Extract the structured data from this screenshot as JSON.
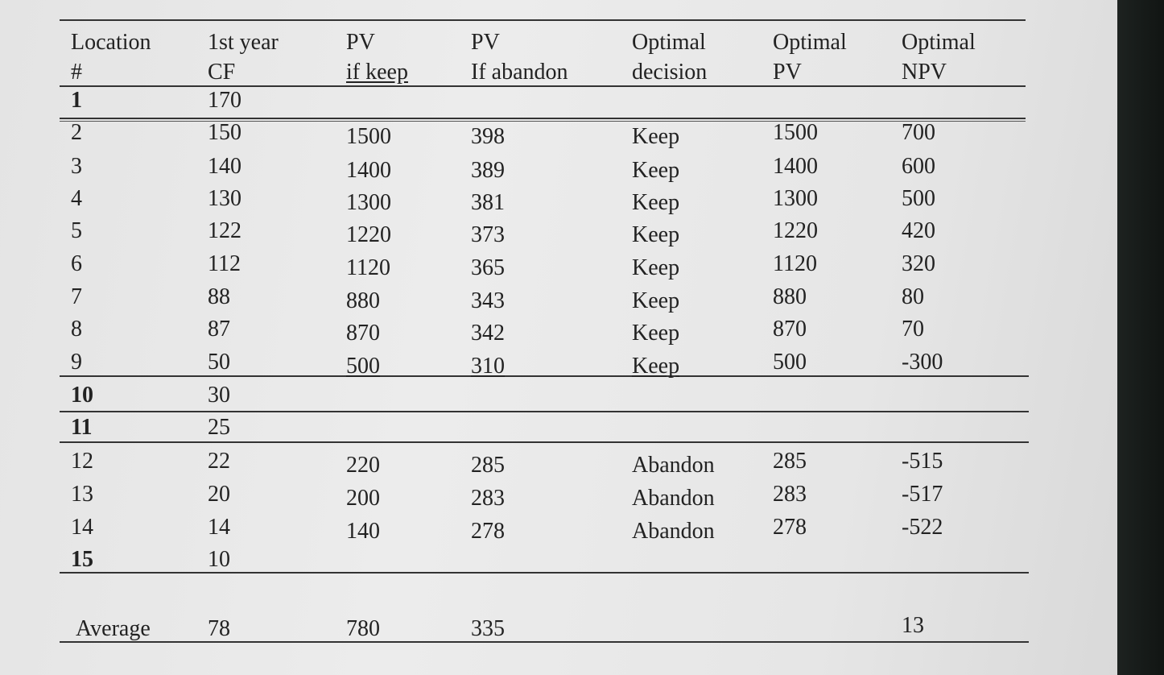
{
  "table": {
    "headers": [
      {
        "line1": "Location",
        "line2": "#"
      },
      {
        "line1": "1st year",
        "line2": "CF"
      },
      {
        "line1": "PV",
        "line2": "if keep"
      },
      {
        "line1": "PV",
        "line2": "If abandon"
      },
      {
        "line1": "Optimal",
        "line2": "decision"
      },
      {
        "line1": "Optimal",
        "line2": "PV"
      },
      {
        "line1": "Optimal",
        "line2": "NPV"
      }
    ],
    "rows": [
      {
        "loc": "1",
        "cf": "170",
        "pv_keep": "",
        "pv_abandon": "",
        "decision": "",
        "opt_pv": "",
        "opt_npv": ""
      },
      {
        "loc": "2",
        "cf": "150",
        "pv_keep": "1500",
        "pv_abandon": "398",
        "decision": "Keep",
        "opt_pv": "1500",
        "opt_npv": "700"
      },
      {
        "loc": "3",
        "cf": "140",
        "pv_keep": "1400",
        "pv_abandon": "389",
        "decision": "Keep",
        "opt_pv": "1400",
        "opt_npv": "600"
      },
      {
        "loc": "4",
        "cf": "130",
        "pv_keep": "1300",
        "pv_abandon": "381",
        "decision": "Keep",
        "opt_pv": "1300",
        "opt_npv": "500"
      },
      {
        "loc": "5",
        "cf": "122",
        "pv_keep": "1220",
        "pv_abandon": "373",
        "decision": "Keep",
        "opt_pv": "1220",
        "opt_npv": "420"
      },
      {
        "loc": "6",
        "cf": "112",
        "pv_keep": "1120",
        "pv_abandon": "365",
        "decision": "Keep",
        "opt_pv": "1120",
        "opt_npv": "320"
      },
      {
        "loc": "7",
        "cf": "88",
        "pv_keep": "880",
        "pv_abandon": "343",
        "decision": "Keep",
        "opt_pv": "880",
        "opt_npv": "80"
      },
      {
        "loc": "8",
        "cf": "87",
        "pv_keep": "870",
        "pv_abandon": "342",
        "decision": "Keep",
        "opt_pv": "870",
        "opt_npv": "70"
      },
      {
        "loc": "9",
        "cf": "50",
        "pv_keep": "500",
        "pv_abandon": "310",
        "decision": "Keep",
        "opt_pv": "500",
        "opt_npv": "-300"
      },
      {
        "loc": "10",
        "cf": "30",
        "pv_keep": "",
        "pv_abandon": "",
        "decision": "",
        "opt_pv": "",
        "opt_npv": ""
      },
      {
        "loc": "11",
        "cf": "25",
        "pv_keep": "",
        "pv_abandon": "",
        "decision": "",
        "opt_pv": "",
        "opt_npv": ""
      },
      {
        "loc": "12",
        "cf": "22",
        "pv_keep": "220",
        "pv_abandon": "285",
        "decision": "Abandon",
        "opt_pv": "285",
        "opt_npv": "-515"
      },
      {
        "loc": "13",
        "cf": "20",
        "pv_keep": "200",
        "pv_abandon": "283",
        "decision": "Abandon",
        "opt_pv": "283",
        "opt_npv": "-517"
      },
      {
        "loc": "14",
        "cf": "14",
        "pv_keep": "140",
        "pv_abandon": "278",
        "decision": "Abandon",
        "opt_pv": "278",
        "opt_npv": "-522"
      },
      {
        "loc": "15",
        "cf": "10",
        "pv_keep": "",
        "pv_abandon": "",
        "decision": "",
        "opt_pv": "",
        "opt_npv": ""
      }
    ],
    "average": {
      "label": "Average",
      "cf": "78",
      "pv_keep": "780",
      "pv_abandon": "335",
      "decision": "",
      "opt_pv": "",
      "opt_npv": "13"
    }
  }
}
